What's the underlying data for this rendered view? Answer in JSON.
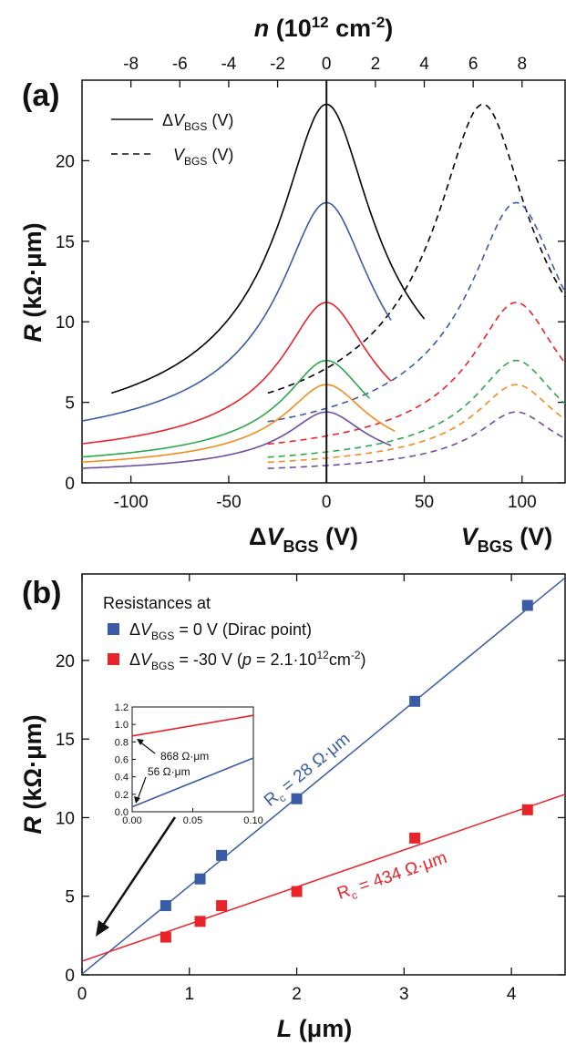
{
  "chart_data": [
    {
      "panel": "(a)",
      "type": "line",
      "top_axis": {
        "label_italic": "n",
        "label_rest": " (10",
        "label_sup": "12",
        "label_unit": " cm",
        "label_unit_sup": "-2",
        "label_close": ")",
        "ticks": [
          -8,
          -6,
          -4,
          -2,
          0,
          2,
          4,
          6,
          8
        ]
      },
      "ylabel": {
        "italic": "R",
        "rest": " (kΩ·μm)"
      },
      "ylim": [
        0,
        25
      ],
      "yticks": [
        0,
        5,
        10,
        15,
        20
      ],
      "xlim": [
        -125,
        122
      ],
      "xticks": [
        -100,
        -50,
        0,
        50,
        100
      ],
      "xlabel_left": {
        "pre": "Δ",
        "italic": "V",
        "sub": "BGS",
        "post": " (V)"
      },
      "xlabel_right": {
        "italic": "V",
        "sub": "BGS",
        "post": " (V)"
      },
      "legend": [
        {
          "pre": "Δ",
          "italic": "V",
          "sub": "BGS",
          "post": " (V)",
          "style": "solid"
        },
        {
          "pre": "",
          "italic": "V",
          "sub": "BGS",
          "post": " (V)",
          "style": "dashed"
        }
      ],
      "series": [
        {
          "color": "#000000",
          "peak": 23.5,
          "floor": 1.2,
          "width": 40,
          "xmin_solid": -110,
          "xmax_solid": 50,
          "dirac_shift": 80
        },
        {
          "color": "#3a5ba6",
          "peak": 17.4,
          "floor": 1.0,
          "width": 40,
          "xmin_solid": -125,
          "xmax_solid": 33,
          "dirac_shift": 97
        },
        {
          "color": "#e8232a",
          "peak": 11.2,
          "floor": 0.7,
          "width": 38,
          "xmin_solid": -125,
          "xmax_solid": 33,
          "dirac_shift": 97
        },
        {
          "color": "#2aa84a",
          "peak": 7.6,
          "floor": 0.5,
          "width": 36,
          "xmin_solid": -125,
          "xmax_solid": 22,
          "dirac_shift": 97
        },
        {
          "color": "#f28c1e",
          "peak": 6.1,
          "floor": 0.4,
          "width": 36,
          "xmin_solid": -125,
          "xmax_solid": 35,
          "dirac_shift": 97
        },
        {
          "color": "#6e4ea0",
          "peak": 4.4,
          "floor": 0.3,
          "width": 34,
          "xmin_solid": -125,
          "xmax_solid": 33,
          "dirac_shift": 97
        }
      ]
    },
    {
      "panel": "(b)",
      "type": "scatter",
      "xlabel": {
        "italic": "L",
        "rest": " (μm)"
      },
      "ylabel": {
        "italic": "R",
        "rest": " (kΩ·μm)"
      },
      "xlim": [
        0,
        4.5
      ],
      "ylim": [
        0,
        25.5
      ],
      "xticks": [
        0,
        1,
        2,
        3,
        4
      ],
      "yticks": [
        0,
        5,
        10,
        15,
        20
      ],
      "legend_title": "Resistances at",
      "legend": [
        {
          "color": "#3a5ba6",
          "pre": "Δ",
          "italic": "V",
          "sub": "BGS",
          "post": " = 0 V (Dirac point)"
        },
        {
          "color": "#e8232a",
          "pre": "Δ",
          "italic": "V",
          "sub": "BGS",
          "post": " = -30 V (",
          "italic2": "p",
          "post2": " = 2.1·10",
          "sup": "12",
          "post3": "cm",
          "sup2": "-2",
          "post4": ")"
        }
      ],
      "series": [
        {
          "name": "ΔVBGS = 0 V (Dirac point)",
          "color": "#3a5ba6",
          "x": [
            0.78,
            1.1,
            1.3,
            2.0,
            3.1,
            4.15
          ],
          "y": [
            4.4,
            6.1,
            7.6,
            11.2,
            17.4,
            23.5
          ],
          "fit": {
            "intercept": 0.056,
            "slope": 5.6
          },
          "annotation": {
            "pre": "R",
            "sub": "c",
            "post": " = 28 Ω·μm"
          }
        },
        {
          "name": "ΔVBGS = -30 V",
          "color": "#e8232a",
          "x": [
            0.78,
            1.1,
            1.3,
            2.0,
            3.1,
            4.15
          ],
          "y": [
            2.4,
            3.4,
            4.4,
            5.3,
            8.7,
            10.5
          ],
          "fit": {
            "intercept": 0.868,
            "slope": 2.36
          },
          "annotation": {
            "pre": "R",
            "sub": "c",
            "post": " = 434 Ω·μm"
          }
        }
      ],
      "inset": {
        "xlim": [
          0,
          0.1
        ],
        "ylim": [
          0,
          1.2
        ],
        "xticks": [
          "0.00",
          "0.05",
          "0.10"
        ],
        "yticks": [
          "0.0",
          "0.2",
          "0.4",
          "0.6",
          "0.8",
          "1.0",
          "1.2"
        ],
        "annotations": [
          "868 Ω·μm",
          "56 Ω·μm"
        ]
      }
    }
  ]
}
